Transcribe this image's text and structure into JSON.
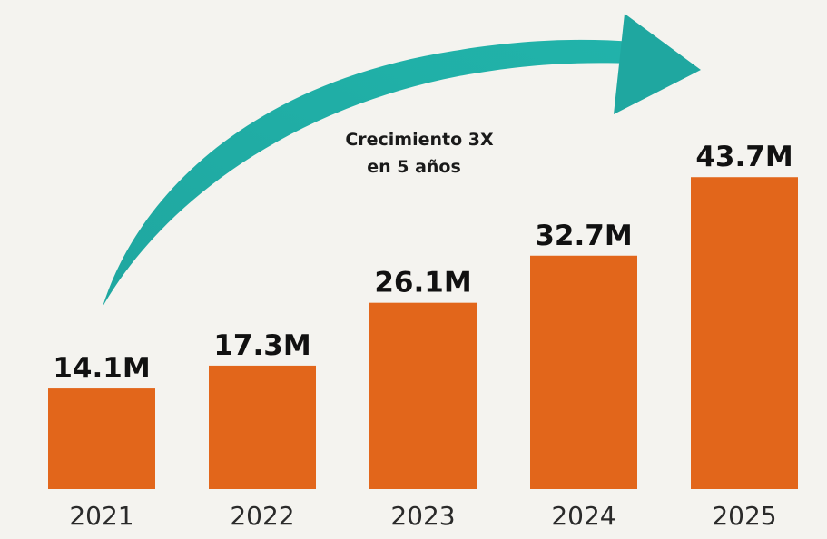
{
  "chart_data": {
    "type": "bar",
    "categories": [
      "2021",
      "2022",
      "2023",
      "2024",
      "2025"
    ],
    "values": [
      14.1,
      17.3,
      26.1,
      32.7,
      43.7
    ],
    "value_labels": [
      "14.1M",
      "17.3M",
      "26.1M",
      "32.7M",
      "43.7M"
    ],
    "unit": "M",
    "ylim": [
      0,
      52.5
    ],
    "grid": false,
    "annotation": {
      "lines": [
        "Crecimiento 3X",
        "en 5 años"
      ]
    }
  },
  "colors": {
    "background": "#f4f3ef",
    "bar": "#e2661b",
    "arrow": "#1fa7a0",
    "text": "#111111"
  }
}
